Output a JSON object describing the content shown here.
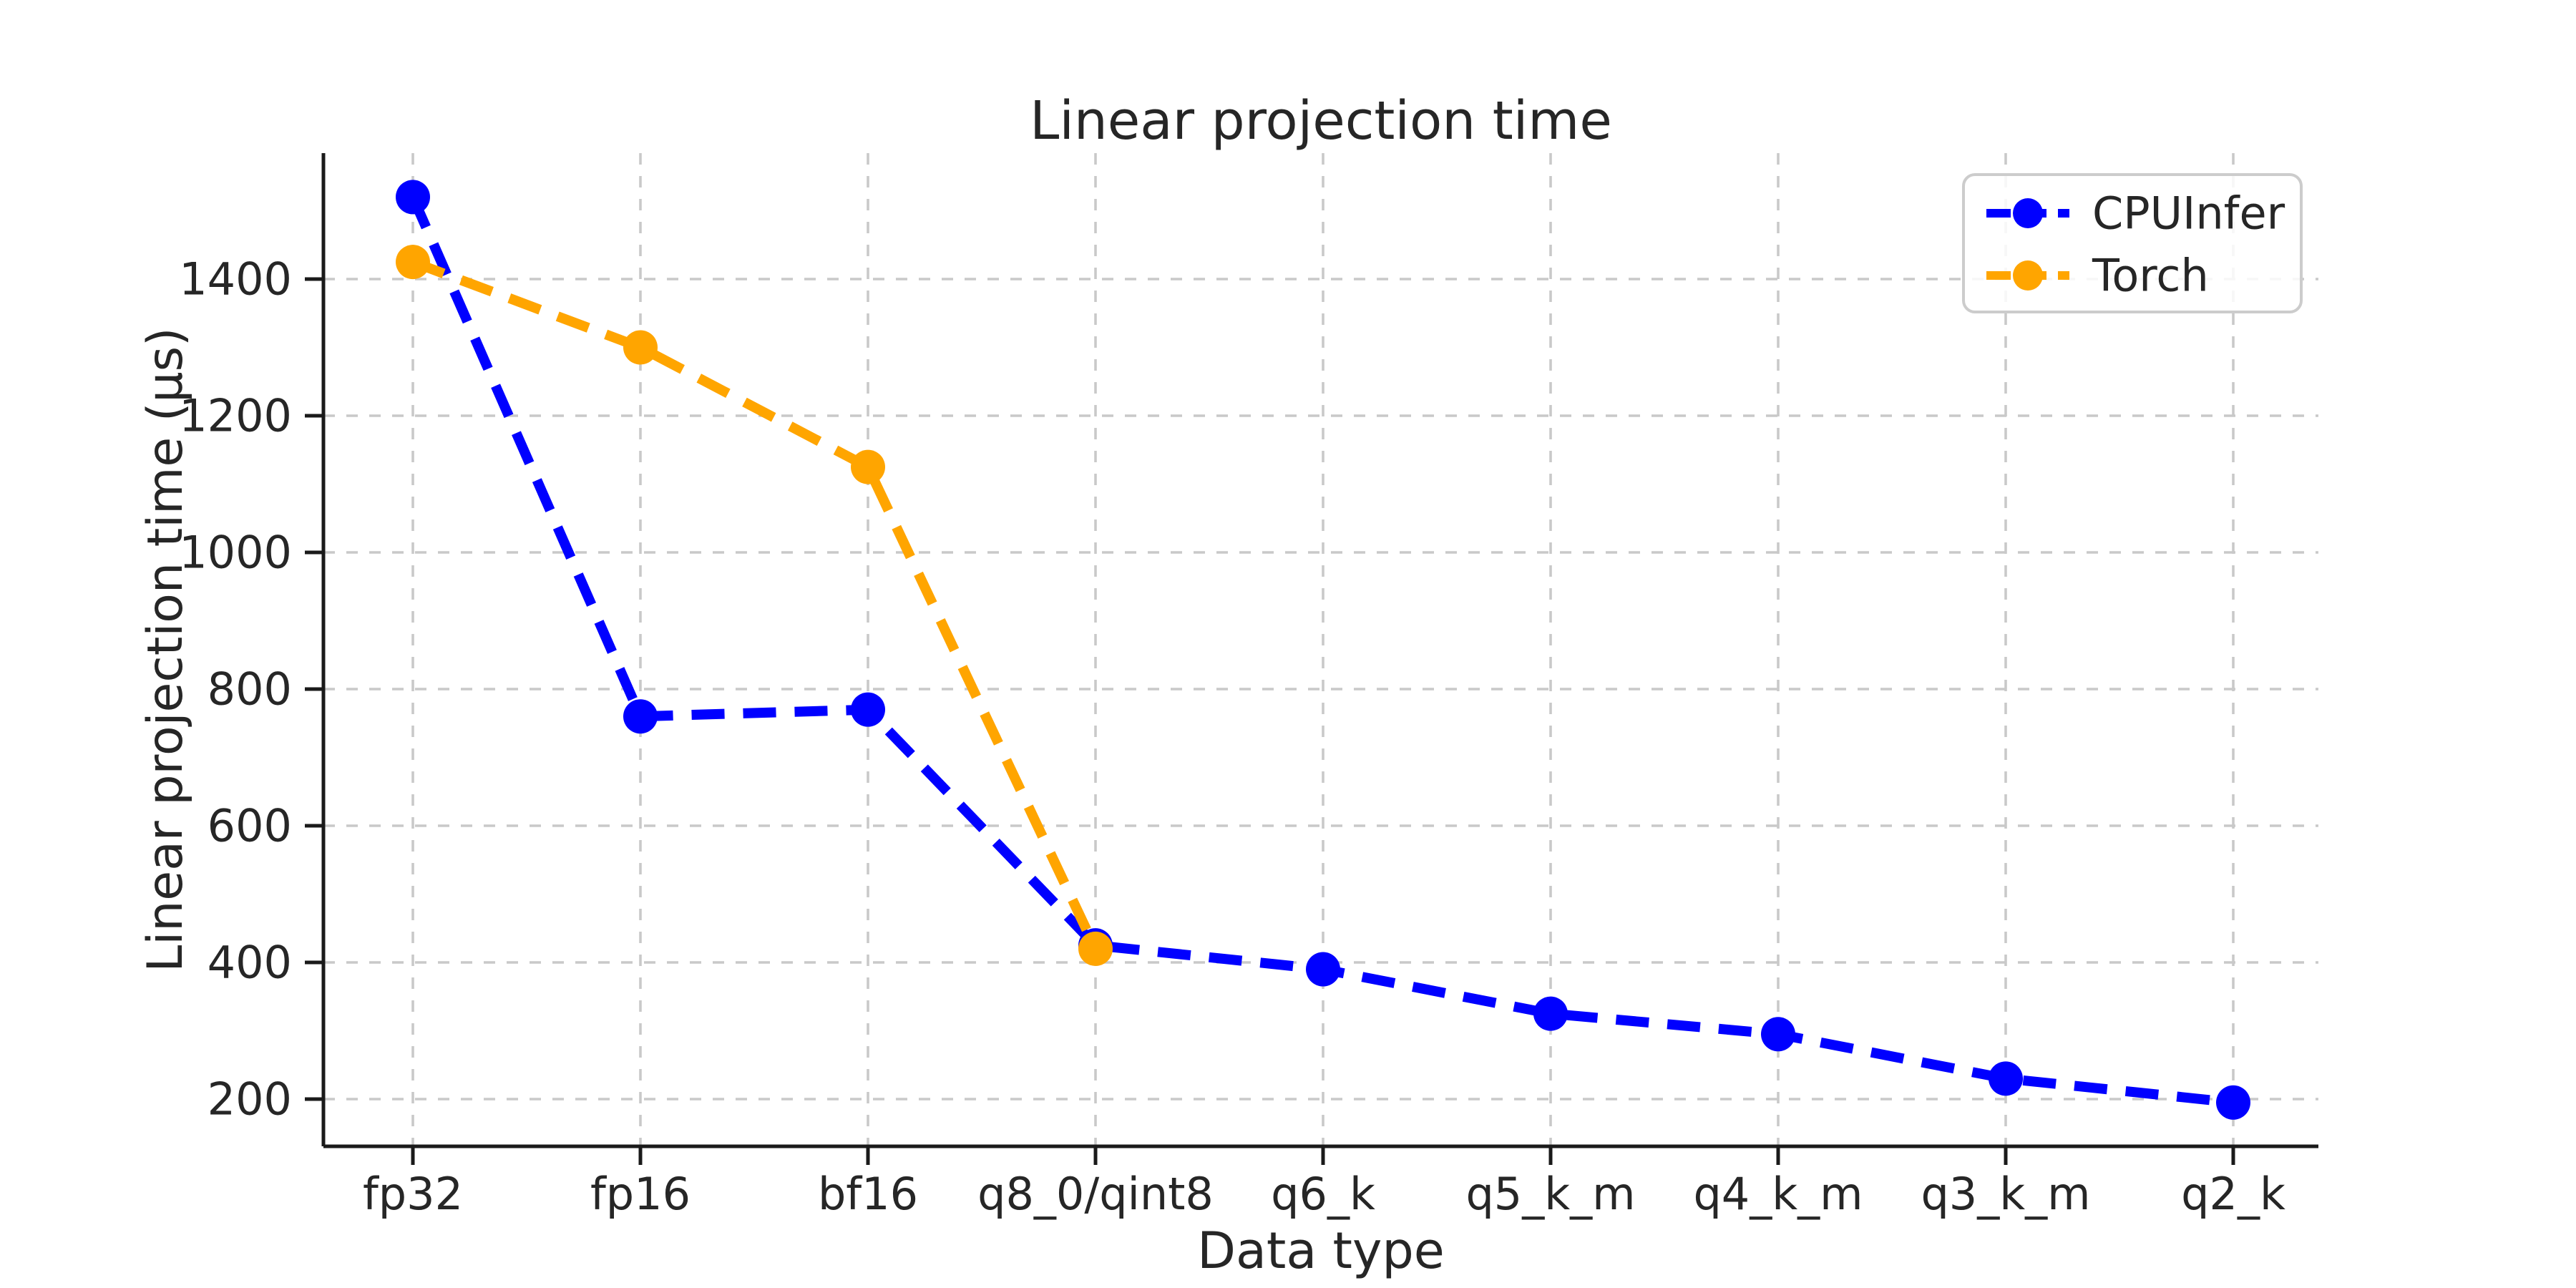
{
  "chart_data": {
    "type": "line",
    "title": "Linear projection time",
    "xlabel": "Data type",
    "ylabel": "Linear projection time (µs)",
    "categories": [
      "fp32",
      "fp16",
      "bf16",
      "q8_0/qint8",
      "q6_k",
      "q5_k_m",
      "q4_k_m",
      "q3_k_m",
      "q2_k"
    ],
    "series": [
      {
        "name": "CPUInfer",
        "color": "#0000ff",
        "values": [
          1520,
          760,
          770,
          425,
          390,
          325,
          295,
          230,
          195
        ]
      },
      {
        "name": "Torch",
        "color": "#ffa500",
        "values": [
          1425,
          1300,
          1125,
          420,
          null,
          null,
          null,
          null,
          null
        ]
      }
    ],
    "yticks": [
      200,
      400,
      600,
      800,
      1000,
      1200,
      1400
    ],
    "ylim": [
      130,
      1585
    ],
    "grid": true,
    "line_style": "dashed",
    "marker": "circle",
    "legend": {
      "position": "upper right",
      "entries": [
        "CPUInfer",
        "Torch"
      ]
    },
    "colors": {
      "grid": "#c9c9c9",
      "spine": "#1a1a1a",
      "text": "#262626",
      "background": "#ffffff",
      "legend_border": "#cccccc"
    }
  }
}
